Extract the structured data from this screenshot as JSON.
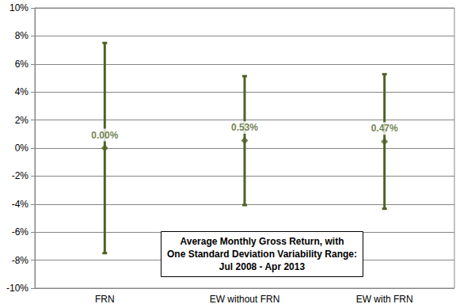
{
  "chart_data": {
    "type": "scatter",
    "title": "Average Monthly Gross Return, with\nOne Standard Deviation Variability Range:\nJul 2008 - Apr 2013",
    "categories": [
      "FRN",
      "EW without FRN",
      "EW with FRN"
    ],
    "values": [
      0.0,
      0.53,
      0.47
    ],
    "value_labels": [
      "0.00%",
      "0.53%",
      "0.47%"
    ],
    "error": [
      7.5,
      4.6,
      4.8
    ],
    "color": "#4f6228",
    "marker": "diamond",
    "data_labels": true,
    "ylim": [
      -10,
      10
    ],
    "yticks": [
      {
        "value": -10,
        "label": "-10%"
      },
      {
        "value": -8,
        "label": "-8%"
      },
      {
        "value": -6,
        "label": "-6%"
      },
      {
        "value": -4,
        "label": "-4%"
      },
      {
        "value": -2,
        "label": "-2%"
      },
      {
        "value": 0,
        "label": "0%"
      },
      {
        "value": 2,
        "label": "2%"
      },
      {
        "value": 4,
        "label": "4%"
      },
      {
        "value": 6,
        "label": "6%"
      },
      {
        "value": 8,
        "label": "8%"
      },
      {
        "value": 10,
        "label": "10%"
      }
    ],
    "grid": true
  }
}
